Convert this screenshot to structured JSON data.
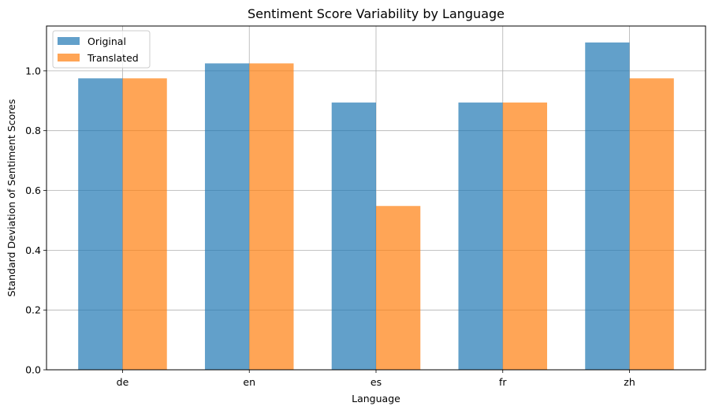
{
  "chart_data": {
    "type": "bar",
    "title": "Sentiment Score Variability by Language",
    "xlabel": "Language",
    "ylabel": "Standard Deviation of Sentiment Scores",
    "categories": [
      "de",
      "en",
      "es",
      "fr",
      "zh"
    ],
    "series": [
      {
        "name": "Original",
        "values": [
          0.975,
          1.025,
          0.894,
          0.894,
          1.095
        ],
        "color": "#1f77b4"
      },
      {
        "name": "Translated",
        "values": [
          0.975,
          1.025,
          0.548,
          0.894,
          0.975
        ],
        "color": "#ff7f0e"
      }
    ],
    "ylim": [
      0,
      1.15
    ],
    "yticks": [
      "0.0",
      "0.2",
      "0.4",
      "0.6",
      "0.8",
      "1.0"
    ],
    "grid": true,
    "legend_position": "top-left",
    "bar_opacity": 0.7
  }
}
